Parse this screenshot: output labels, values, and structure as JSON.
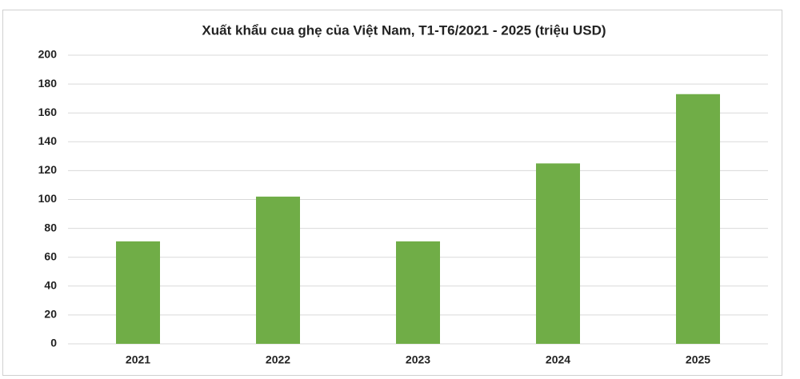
{
  "chart_data": {
    "type": "bar",
    "title": "Xuất khẩu cua ghẹ của Việt Nam, T1-T6/2021 - 2025 (triệu USD)",
    "categories": [
      "2021",
      "2022",
      "2023",
      "2024",
      "2025"
    ],
    "values": [
      71,
      102,
      71,
      125,
      173
    ],
    "color": "#70ad47",
    "ylim": [
      0,
      200
    ],
    "yticks": [
      0,
      20,
      40,
      60,
      80,
      100,
      120,
      140,
      160,
      180,
      200
    ],
    "grid": true
  }
}
